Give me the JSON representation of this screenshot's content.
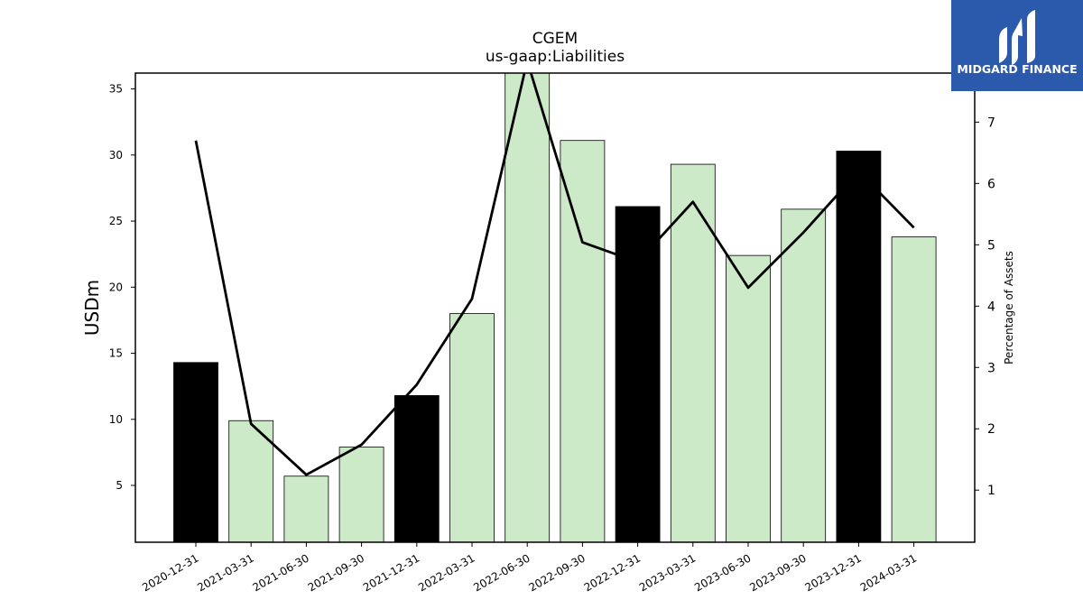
{
  "chart_data": {
    "type": "bar",
    "title": "CGEM",
    "subtitle": "us-gaap:Liabilities",
    "ylabel": "USDm",
    "y2label": "Percentage of Assets",
    "categories": [
      "2020-12-31",
      "2021-03-31",
      "2021-06-30",
      "2021-09-30",
      "2021-12-31",
      "2022-03-31",
      "2022-06-30",
      "2022-09-30",
      "2022-12-31",
      "2023-03-31",
      "2023-06-30",
      "2023-09-30",
      "2023-12-31",
      "2024-03-31"
    ],
    "series": [
      {
        "type": "bar",
        "axis": "left",
        "values": [
          14.3,
          9.9,
          5.7,
          7.9,
          11.8,
          18.0,
          36.3,
          31.1,
          26.1,
          29.3,
          22.4,
          25.9,
          30.3,
          23.8
        ],
        "colors": [
          "#000000",
          "#cdeac8",
          "#cdeac8",
          "#cdeac8",
          "#000000",
          "#cdeac8",
          "#cdeac8",
          "#cdeac8",
          "#000000",
          "#cdeac8",
          "#cdeac8",
          "#cdeac8",
          "#000000",
          "#cdeac8"
        ]
      },
      {
        "type": "line",
        "axis": "right",
        "color": "#000000",
        "values": [
          6.7,
          2.08,
          1.25,
          1.74,
          2.72,
          4.12,
          8.0,
          5.04,
          4.72,
          5.7,
          4.3,
          5.2,
          6.2,
          5.28
        ]
      }
    ],
    "ylim": [
      0.7,
      36.2
    ],
    "yticks": [
      5,
      10,
      15,
      20,
      25,
      30,
      35
    ],
    "y2lim": [
      0.15,
      7.8
    ],
    "y2ticks": [
      1,
      2,
      3,
      4,
      5,
      6,
      7
    ],
    "grid": false,
    "legend": "none"
  },
  "logo": {
    "text": "MIDGARD FINANCE",
    "background": "#2b5aad"
  }
}
